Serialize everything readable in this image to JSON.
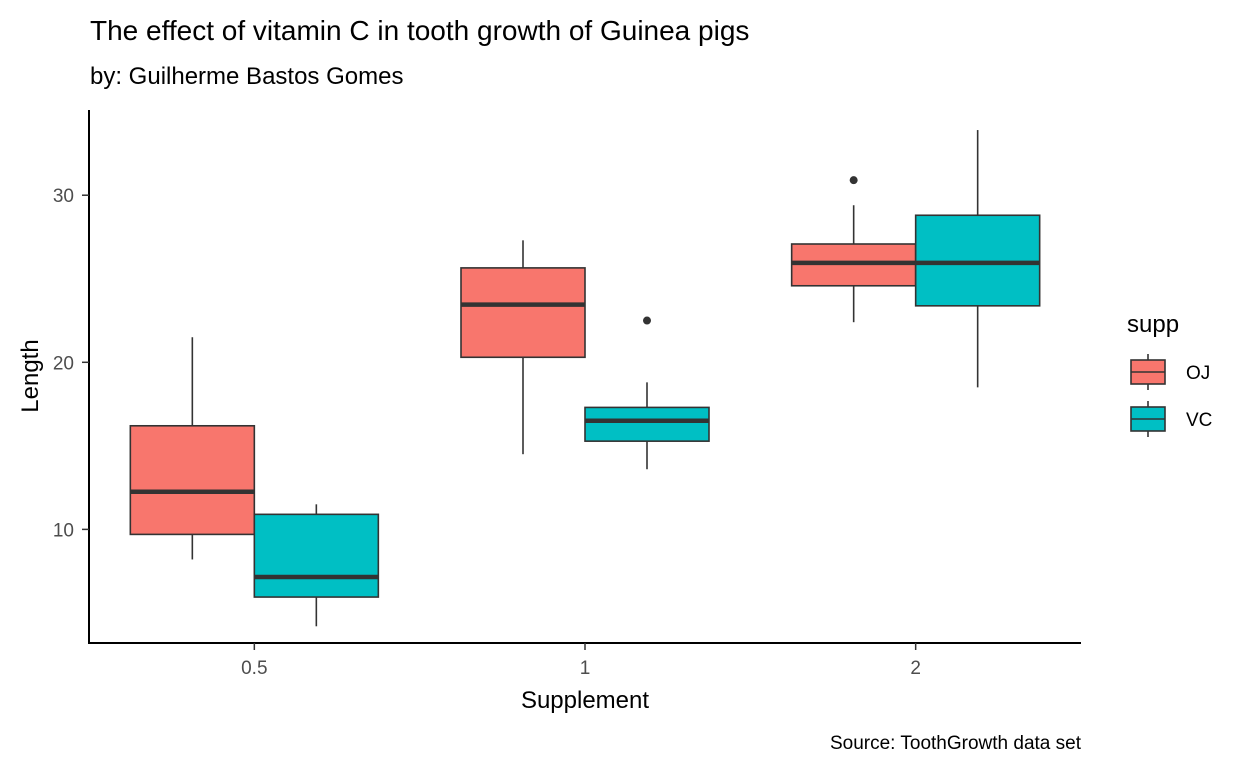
{
  "chart_data": {
    "type": "boxplot",
    "title": "The effect of vitamin C in tooth growth of Guinea pigs",
    "subtitle": "by: Guilherme Bastos Gomes",
    "caption": "Source: ToothGrowth data set",
    "xlabel": "Supplement",
    "ylabel": "Length",
    "categories": [
      "0.5",
      "1",
      "2"
    ],
    "ylim": [
      3.2,
      35.1
    ],
    "yticks": [
      10,
      20,
      30
    ],
    "grid": false,
    "legend": {
      "title": "supp",
      "position": "right",
      "entries": [
        {
          "name": "OJ",
          "color": "#F8766D"
        },
        {
          "name": "VC",
          "color": "#00BFC4"
        }
      ]
    },
    "series": [
      {
        "name": "OJ",
        "color": "#F8766D",
        "boxes": [
          {
            "category": "0.5",
            "whisker_low": 8.2,
            "q1": 9.7,
            "median": 12.25,
            "q3": 16.2,
            "whisker_high": 21.5,
            "outliers": []
          },
          {
            "category": "1",
            "whisker_low": 14.5,
            "q1": 20.3,
            "median": 23.45,
            "q3": 25.65,
            "whisker_high": 27.3,
            "outliers": []
          },
          {
            "category": "2",
            "whisker_low": 22.4,
            "q1": 24.58,
            "median": 25.95,
            "q3": 27.08,
            "whisker_high": 29.4,
            "outliers": [
              30.9
            ]
          }
        ]
      },
      {
        "name": "VC",
        "color": "#00BFC4",
        "boxes": [
          {
            "category": "0.5",
            "whisker_low": 4.2,
            "q1": 5.95,
            "median": 7.15,
            "q3": 10.9,
            "whisker_high": 11.5,
            "outliers": []
          },
          {
            "category": "1",
            "whisker_low": 13.6,
            "q1": 15.28,
            "median": 16.5,
            "q3": 17.3,
            "whisker_high": 18.8,
            "outliers": [
              22.5
            ]
          },
          {
            "category": "2",
            "whisker_low": 18.5,
            "q1": 23.38,
            "median": 25.95,
            "q3": 28.8,
            "whisker_high": 33.9,
            "outliers": []
          }
        ]
      }
    ]
  }
}
